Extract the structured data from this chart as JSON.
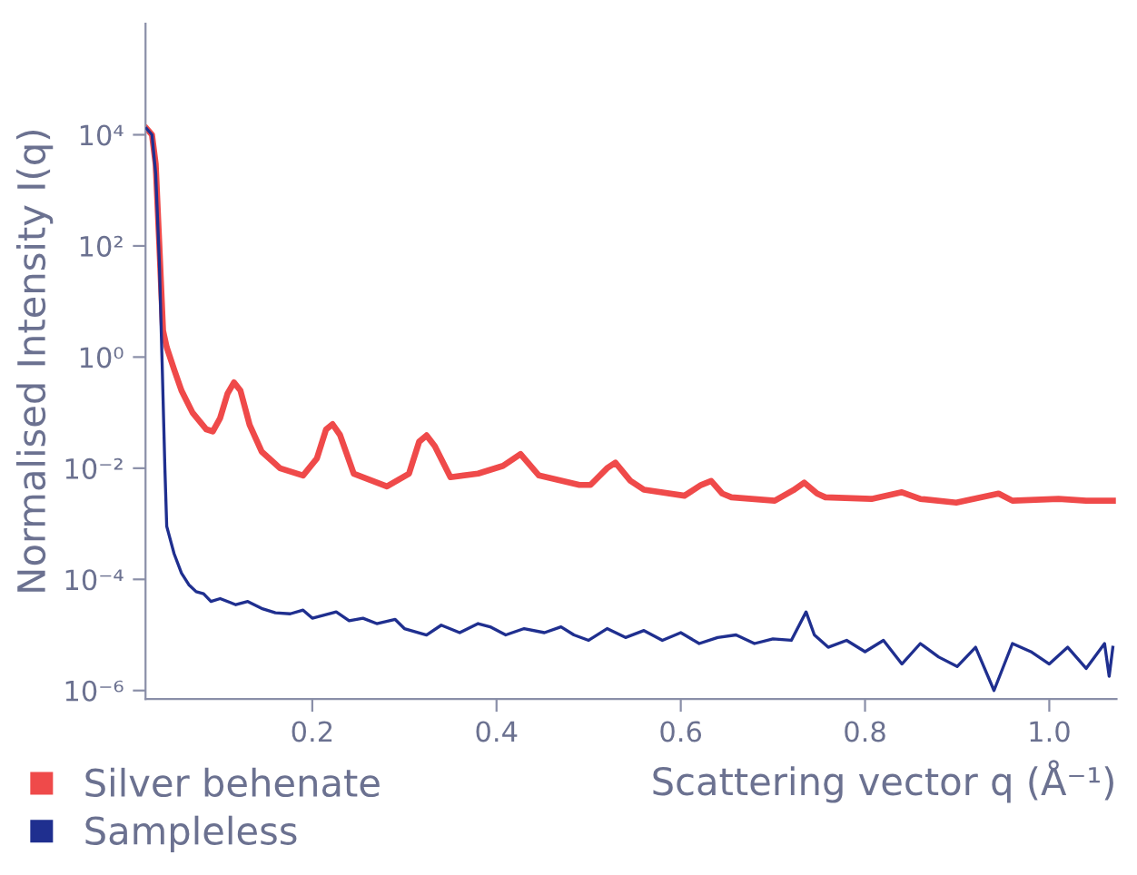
{
  "chart_data": {
    "type": "line",
    "xlabel": "Scattering vector q (Å⁻¹)",
    "ylabel": "Normalised Intensity I(q)",
    "log": "y",
    "xlim": [
      0.019,
      1.073
    ],
    "xticks": [
      0.2,
      0.4,
      0.6,
      0.8,
      {
        "value": 1.0,
        "label": "1.0"
      }
    ],
    "ylim": [
      7e-07,
      1000000.0
    ],
    "yticks": [
      {
        "value": 10000,
        "label": "10⁴"
      },
      {
        "value": 100,
        "label": "10²"
      },
      {
        "value": 1,
        "label": "10⁰"
      },
      {
        "value": 0.01,
        "label": "10⁻²"
      },
      {
        "value": 0.0001,
        "label": "10⁻⁴"
      },
      {
        "value": 1e-06,
        "label": "10⁻⁶"
      }
    ],
    "grid": false,
    "legend": "bottom left",
    "marker": "none",
    "line_style": "solid",
    "series": [
      {
        "name": "Silver behenate",
        "color": "#ef4a4a",
        "x": [
          0.02,
          0.026,
          0.03,
          0.034,
          0.038,
          0.042,
          0.05,
          0.058,
          0.07,
          0.085,
          0.092,
          0.1,
          0.108,
          0.115,
          0.122,
          0.132,
          0.145,
          0.165,
          0.19,
          0.205,
          0.215,
          0.222,
          0.23,
          0.245,
          0.281,
          0.305,
          0.316,
          0.324,
          0.333,
          0.35,
          0.38,
          0.407,
          0.426,
          0.446,
          0.49,
          0.502,
          0.52,
          0.529,
          0.545,
          0.56,
          0.604,
          0.622,
          0.633,
          0.645,
          0.655,
          0.702,
          0.722,
          0.734,
          0.748,
          0.757,
          0.807,
          0.84,
          0.86,
          0.899,
          0.945,
          0.96,
          1.01,
          1.04,
          1.069
        ],
        "values": [
          13000,
          10000,
          3000,
          100,
          3,
          1.5,
          0.6,
          0.25,
          0.1,
          0.05,
          0.046,
          0.08,
          0.22,
          0.35,
          0.25,
          0.06,
          0.02,
          0.01,
          0.0074,
          0.015,
          0.05,
          0.062,
          0.04,
          0.008,
          0.0047,
          0.008,
          0.03,
          0.039,
          0.025,
          0.0069,
          0.008,
          0.011,
          0.018,
          0.0074,
          0.005,
          0.005,
          0.01,
          0.0126,
          0.006,
          0.0041,
          0.0032,
          0.005,
          0.0059,
          0.0035,
          0.003,
          0.0026,
          0.004,
          0.0055,
          0.0035,
          0.003,
          0.0028,
          0.0037,
          0.0028,
          0.0024,
          0.0035,
          0.0026,
          0.0028,
          0.0026,
          0.0026
        ]
      },
      {
        "name": "Sampleless",
        "color": "#1f2f8f",
        "x": [
          0.02,
          0.026,
          0.03,
          0.034,
          0.037,
          0.04,
          0.042,
          0.05,
          0.058,
          0.066,
          0.074,
          0.082,
          0.09,
          0.1,
          0.117,
          0.13,
          0.145,
          0.16,
          0.176,
          0.19,
          0.2,
          0.226,
          0.24,
          0.255,
          0.27,
          0.29,
          0.3,
          0.324,
          0.34,
          0.36,
          0.38,
          0.393,
          0.41,
          0.43,
          0.452,
          0.47,
          0.484,
          0.5,
          0.52,
          0.54,
          0.56,
          0.58,
          0.6,
          0.62,
          0.64,
          0.66,
          0.68,
          0.7,
          0.72,
          0.736,
          0.745,
          0.76,
          0.78,
          0.8,
          0.82,
          0.84,
          0.86,
          0.88,
          0.9,
          0.92,
          0.94,
          0.96,
          0.98,
          1.0,
          1.02,
          1.04,
          1.06,
          1.065,
          1.069
        ],
        "values": [
          13000,
          10000,
          2000,
          50,
          0.8,
          0.01,
          0.0009,
          0.00029,
          0.00013,
          8e-05,
          6e-05,
          5.5e-05,
          4e-05,
          4.5e-05,
          3.5e-05,
          4e-05,
          3e-05,
          2.5e-05,
          2.4e-05,
          2.8e-05,
          2e-05,
          2.6e-05,
          1.8e-05,
          2e-05,
          1.6e-05,
          1.9e-05,
          1.3e-05,
          1e-05,
          1.5e-05,
          1.1e-05,
          1.6e-05,
          1.4e-05,
          1e-05,
          1.3e-05,
          1.1e-05,
          1.4e-05,
          1e-05,
          8e-06,
          1.3e-05,
          9e-06,
          1.2e-05,
          8e-06,
          1.1e-05,
          7e-06,
          9e-06,
          1e-05,
          7e-06,
          8.5e-06,
          8e-06,
          2.6e-05,
          1e-05,
          6e-06,
          8e-06,
          5e-06,
          8e-06,
          3e-06,
          7e-06,
          4e-06,
          2.7e-06,
          6e-06,
          1e-06,
          7e-06,
          5e-06,
          3e-06,
          6e-06,
          2.5e-06,
          7e-06,
          1.8e-06,
          6e-06
        ]
      }
    ]
  }
}
